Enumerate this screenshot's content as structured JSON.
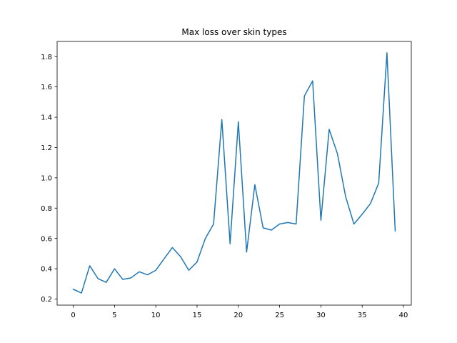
{
  "chart_data": {
    "type": "line",
    "title": "Max loss over skin types",
    "xlabel": "",
    "ylabel": "",
    "xlim": [
      -1.95,
      40.95
    ],
    "ylim": [
      0.16,
      1.9
    ],
    "x_ticks": [
      0,
      5,
      10,
      15,
      20,
      25,
      30,
      35,
      40
    ],
    "x_tick_labels": [
      "0",
      "5",
      "10",
      "15",
      "20",
      "25",
      "30",
      "35",
      "40"
    ],
    "y_ticks": [
      0.2,
      0.4,
      0.6,
      0.8,
      1.0,
      1.2,
      1.4,
      1.6,
      1.8
    ],
    "y_tick_labels": [
      "0.2",
      "0.4",
      "0.6",
      "0.8",
      "1.0",
      "1.2",
      "1.4",
      "1.6",
      "1.8"
    ],
    "grid": false,
    "series": [
      {
        "color": "#1f77b4",
        "x": [
          0,
          1,
          2,
          3,
          4,
          5,
          6,
          7,
          8,
          9,
          10,
          11,
          12,
          13,
          14,
          15,
          16,
          17,
          18,
          19,
          20,
          21,
          22,
          23,
          24,
          25,
          26,
          27,
          28,
          29,
          30,
          31,
          32,
          33,
          34,
          35,
          36,
          37,
          38,
          39
        ],
        "y": [
          0.265,
          0.24,
          0.42,
          0.335,
          0.31,
          0.4,
          0.33,
          0.34,
          0.38,
          0.36,
          0.39,
          0.465,
          0.54,
          0.48,
          0.39,
          0.445,
          0.6,
          0.695,
          1.385,
          0.565,
          1.37,
          0.51,
          0.955,
          0.67,
          0.655,
          0.695,
          0.705,
          0.695,
          1.54,
          1.64,
          0.72,
          1.32,
          1.16,
          0.875,
          0.695,
          0.76,
          0.83,
          0.965,
          1.825,
          0.65
        ]
      }
    ]
  }
}
